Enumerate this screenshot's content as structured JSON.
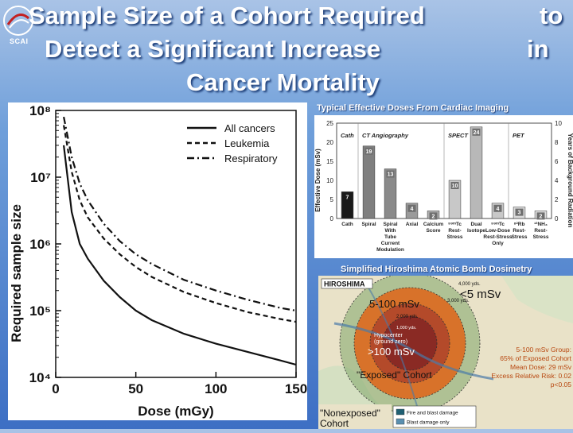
{
  "slide": {
    "title_line1": "Sample Size of a Cohort Required",
    "title_to": "to",
    "title_line2": "Detect a Significant Increase",
    "title_in": "in",
    "title_line3": "Cancer Mortality",
    "logo_text": "SCAI"
  },
  "chart_data": [
    {
      "type": "line",
      "title": "",
      "xlabel": "Dose (mGy)",
      "ylabel": "Required sample size",
      "x_ticks": [
        "0",
        "50",
        "100",
        "150"
      ],
      "y_ticks": [
        "10⁴",
        "10⁵",
        "10⁶",
        "10⁷",
        "10⁸"
      ],
      "y_scale": "log",
      "xlim": [
        0,
        150
      ],
      "ylim": [
        10000,
        100000000
      ],
      "legend": "top-right",
      "series": [
        {
          "name": "All cancers",
          "style": "solid",
          "x": [
            5,
            10,
            15,
            20,
            30,
            40,
            50,
            60,
            80,
            100,
            120,
            140,
            150
          ],
          "y": [
            30000000,
            3000000,
            1000000,
            600000,
            280000,
            160000,
            100000,
            72000,
            45000,
            32000,
            24000,
            18000,
            15500
          ]
        },
        {
          "name": "Leukemia",
          "style": "dashed",
          "x": [
            5,
            10,
            15,
            20,
            30,
            40,
            50,
            60,
            80,
            100,
            120,
            140,
            150
          ],
          "y": [
            60000000,
            12000000,
            4500000,
            2500000,
            1200000,
            700000,
            450000,
            320000,
            190000,
            130000,
            95000,
            75000,
            68000
          ]
        },
        {
          "name": "Respiratory",
          "style": "dash-dot",
          "x": [
            5,
            10,
            15,
            20,
            30,
            40,
            50,
            60,
            80,
            100,
            120,
            140,
            150
          ],
          "y": [
            80000000,
            20000000,
            8000000,
            4500000,
            2000000,
            1100000,
            700000,
            500000,
            290000,
            200000,
            145000,
            110000,
            100000
          ]
        }
      ]
    },
    {
      "type": "bar",
      "title": "Typical Effective Doses From Cardiac Imaging",
      "ylabel": "Effective Dose (mSv)",
      "y2label": "Years of Background Radiation",
      "ylim": [
        0,
        25
      ],
      "y2lim": [
        0,
        10
      ],
      "y_ticks": [
        "0",
        "5",
        "10",
        "15",
        "20",
        "25"
      ],
      "y2_ticks": [
        "0",
        "2",
        "4",
        "6",
        "8",
        "10"
      ],
      "groups": [
        "Cath",
        "CT Angiography",
        "SPECT",
        "PET"
      ],
      "categories": [
        "Cath",
        "Spiral",
        "Spiral With Tube Current Modulation",
        "Axial",
        "Calcium Score",
        "99mTc Rest-Stress",
        "Dual Isotope",
        "99mTc Low-Dose Rest-Stress Only",
        "82Rb Rest-Stress",
        "13NH3 Rest-Stress"
      ],
      "category_lines": [
        [
          "Cath"
        ],
        [
          "Spiral"
        ],
        [
          "Spiral",
          "With",
          "Tube",
          "Current",
          "Modulation"
        ],
        [
          "Axial"
        ],
        [
          "Calcium",
          "Score"
        ],
        [
          "⁹⁹ᵐTc",
          "Rest-",
          "Stress"
        ],
        [
          "Dual",
          "Isotope"
        ],
        [
          "⁹⁹ᵐTc",
          "Low-Dose",
          "Rest-Stress",
          "Only"
        ],
        [
          "⁸²Rb",
          "Rest-",
          "Stress"
        ],
        [
          "¹³NH₃",
          "Rest-",
          "Stress"
        ]
      ],
      "values": [
        7,
        19,
        13,
        4,
        2,
        10,
        24,
        4,
        3,
        2
      ],
      "value_labels": [
        "7",
        "19",
        "13",
        "4",
        "2",
        "10",
        "24",
        "4",
        "3",
        "2"
      ],
      "colors": [
        "#1a1a1a",
        "#7f7f7f",
        "#8a8a8a",
        "#9a9a9a",
        "#b0b0b0",
        "#c8c8c8",
        "#b8b8b8",
        "#c8c8c8",
        "#d8d8d8",
        "#e0e0e0"
      ]
    }
  ],
  "map": {
    "caption": "Simplified Hiroshima Atomic Bomb Dosimetry",
    "label": "HIROSHIMA",
    "dist_4000": "4,000 yds.",
    "lt5": "<5 mSv",
    "dist_3000": "3,000 yds.",
    "band_5_100": "5-100 mSv",
    "dist_2000": "2,000 yds.",
    "dist_1000": "1,000 yds.",
    "hypocenter1": "Hypocenter",
    "hypocenter2": "(ground zero)",
    "gt100": ">100 mSv",
    "exposed": "\"Exposed\" Cohort",
    "nonexposed1": "\"Nonexposed\"",
    "nonexposed2": "Cohort",
    "legend_fire": "Fire and blast damage",
    "legend_blast": "Blast damage only",
    "color_fire": "#1f5f73",
    "color_blast": "#5a8fb0",
    "group_lines": [
      "5-100 mSv Group:",
      "65% of Exposed Cohort",
      "Mean Dose: 29 mSv",
      "Excess Relative Risk: 0.02",
      "p<0.05"
    ]
  }
}
